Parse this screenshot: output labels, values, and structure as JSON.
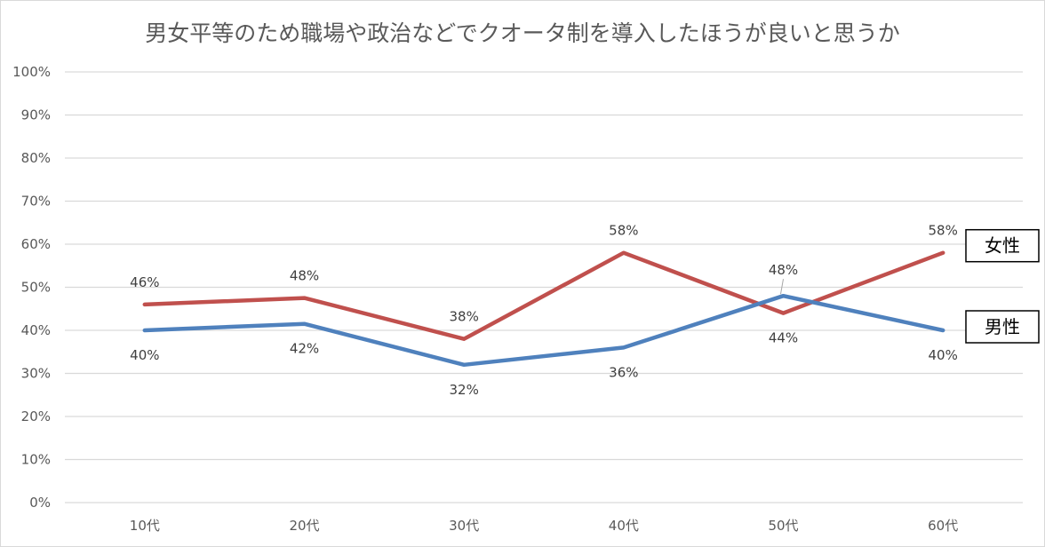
{
  "chart_data": {
    "type": "line",
    "title": "男女平等のため職場や政治などでクオータ制を導入したほうが良いと思うか",
    "xlabel": "",
    "ylabel": "",
    "categories": [
      "10代",
      "20代",
      "30代",
      "40代",
      "50代",
      "60代"
    ],
    "ylim": [
      0,
      100
    ],
    "yticks": [
      "0%",
      "10%",
      "20%",
      "30%",
      "40%",
      "50%",
      "60%",
      "70%",
      "80%",
      "90%",
      "100%"
    ],
    "grid": true,
    "legend": "boxed labels at right end of each line",
    "series": [
      {
        "name": "女性",
        "color": "#c0504d",
        "values": [
          46,
          47.5,
          38,
          58,
          44,
          58
        ],
        "labels": [
          "46%",
          "48%",
          "38%",
          "58%",
          "44%",
          "58%"
        ],
        "label_side": [
          "above",
          "above",
          "above",
          "above",
          "below",
          "above"
        ]
      },
      {
        "name": "男性",
        "color": "#4f81bd",
        "values": [
          40,
          41.5,
          32,
          36,
          48,
          40
        ],
        "labels": [
          "40%",
          "42%",
          "32%",
          "36%",
          "48%",
          "40%"
        ],
        "label_side": [
          "below",
          "below",
          "below",
          "below",
          "above",
          "below"
        ]
      }
    ]
  }
}
